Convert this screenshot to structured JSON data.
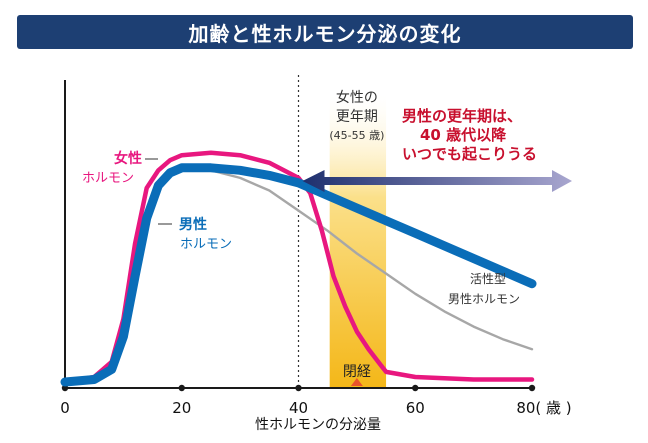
{
  "title": "加齢と性ホルモン分泌の変化",
  "chart_data": {
    "type": "line",
    "xlabel": "性ホルモンの分泌量",
    "x_ticks": [
      "0",
      "20",
      "40",
      "60",
      "80( 歳 )"
    ],
    "x_tick_values": [
      0,
      20,
      40,
      60,
      80
    ],
    "xlim": [
      0,
      80
    ],
    "ylim": [
      0,
      100
    ],
    "series": [
      {
        "name": "女性ホルモン",
        "name_lines": [
          "女性",
          "ホルモン"
        ],
        "color": "#e8177f",
        "x": [
          0,
          5,
          8,
          10,
          12,
          14,
          16,
          18,
          20,
          25,
          30,
          35,
          40,
          42,
          44,
          46,
          48,
          50,
          52,
          54,
          55,
          60,
          70,
          80
        ],
        "y": [
          0,
          2,
          8,
          25,
          55,
          77,
          84,
          88,
          90,
          91,
          90,
          87,
          81,
          75,
          60,
          42,
          30,
          20,
          13,
          7,
          4,
          2,
          1,
          1
        ]
      },
      {
        "name": "男性ホルモン",
        "name_lines": [
          "男性",
          "ホルモン"
        ],
        "color": "#0a6db8",
        "x": [
          0,
          5,
          8,
          10,
          12,
          14,
          16,
          18,
          20,
          25,
          30,
          35,
          40,
          45,
          50,
          55,
          60,
          65,
          70,
          75,
          80
        ],
        "y": [
          0,
          1,
          5,
          18,
          42,
          65,
          78,
          83,
          85,
          85,
          84,
          82,
          79,
          74,
          69,
          64,
          59,
          54,
          49,
          44,
          39
        ]
      },
      {
        "name": "活性型男性ホルモン",
        "name_lines": [
          "活性型",
          "男性ホルモン"
        ],
        "color": "#a7a7a7",
        "x": [
          16,
          18,
          20,
          25,
          30,
          35,
          40,
          45,
          50,
          55,
          60,
          65,
          70,
          75,
          80
        ],
        "y": [
          78,
          83,
          85,
          84,
          81,
          76,
          68,
          60,
          51,
          43,
          35,
          28,
          22,
          17,
          13
        ]
      }
    ],
    "band": {
      "x_range": [
        45,
        55
      ],
      "label_lines": [
        "女性の",
        "更年期"
      ],
      "sublabel": "(45-55 歳)",
      "color": "#f6c33c"
    },
    "vline": {
      "x": 40,
      "style": "dotted"
    },
    "marker": {
      "x": 50,
      "label": "閉経",
      "color": "#e9542a"
    },
    "annotation": {
      "lines": [
        "男性の更年期は、",
        "40 歳代以降",
        "いつでも起こりうる"
      ],
      "color": "#c8102e",
      "arrow_from": 40,
      "arrow_to": 80
    },
    "colors": {
      "axis": "#1a1a1a",
      "arrow_dark": "#1e2f6e",
      "arrow_light": "#a8a6cf"
    }
  }
}
